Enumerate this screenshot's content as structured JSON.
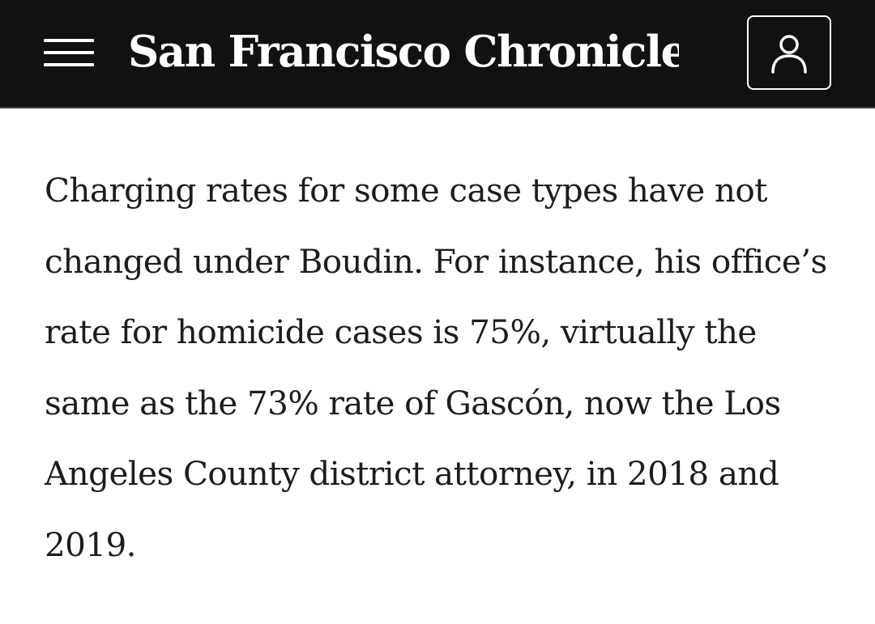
{
  "header": {
    "menu_icon": "hamburger-menu-icon",
    "logo_text": "San Francisco Chronicle",
    "account_icon": "user-account-icon",
    "background_color": "#111111"
  },
  "article": {
    "paragraph": "Charging rates for some case types have not changed under Boudin. For instance, his office’s rate for homicide cases is 75%, virtually the same as the 73% rate of Gascón, now the Los Angeles County district attorney, in 2018 and 2019."
  }
}
